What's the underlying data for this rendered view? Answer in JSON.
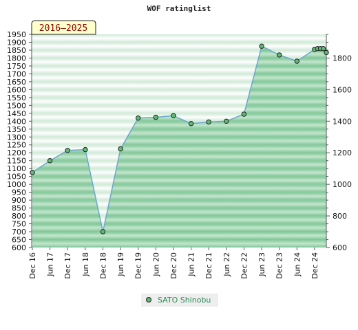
{
  "chart_data": {
    "type": "area",
    "title": "WOF ratinglist",
    "period_badge": "2016–2025",
    "x_tick_labels": [
      "Dec 16",
      "Jun 17",
      "Dec 17",
      "Jun 18",
      "Dec 18",
      "Jun 19",
      "Dec 19",
      "Jun 20",
      "Dec 20",
      "Jun 21",
      "Dec 21",
      "Jun 22",
      "Dec 22",
      "Jun 23",
      "Dec 23",
      "Jun 24",
      "Dec 24"
    ],
    "y_left": {
      "min": 600,
      "max": 1950,
      "step": 50
    },
    "y_right": {
      "min": 600,
      "max": 1950,
      "major_step": 200,
      "labels": [
        600,
        800,
        1000,
        1200,
        1400,
        1600,
        1800
      ]
    },
    "grid": false,
    "legend_position": "bottom-center",
    "series": [
      {
        "name": "SATO Shinobu",
        "x": [
          "Dec 16",
          "Jun 17",
          "Dec 17",
          "Jun 18",
          "Dec 18",
          "Jun 19",
          "Dec 19",
          "Jun 20",
          "Dec 20",
          "Jun 21",
          "Dec 21",
          "Jun 22",
          "Dec 22",
          "Jun 23",
          "Dec 23",
          "Jun 24",
          "Dec 24",
          "Jan 25",
          "Feb 25",
          "Mar 25",
          "Apr 25"
        ],
        "values": [
          1075,
          1150,
          1215,
          1220,
          700,
          1225,
          1420,
          1425,
          1435,
          1385,
          1395,
          1400,
          1445,
          1875,
          1820,
          1780,
          1855,
          1860,
          1860,
          1860,
          1835
        ]
      }
    ],
    "colors": {
      "fill_dark": "#7ec696",
      "fill_light": "#c4e6cd",
      "band_dark": "#cfe9d6",
      "band_light": "#ffffff",
      "line": "#6aa7cf",
      "marker": "#5fb874",
      "legend_bg": "#eeeeee",
      "badge_bg": "#ffffcc"
    }
  }
}
